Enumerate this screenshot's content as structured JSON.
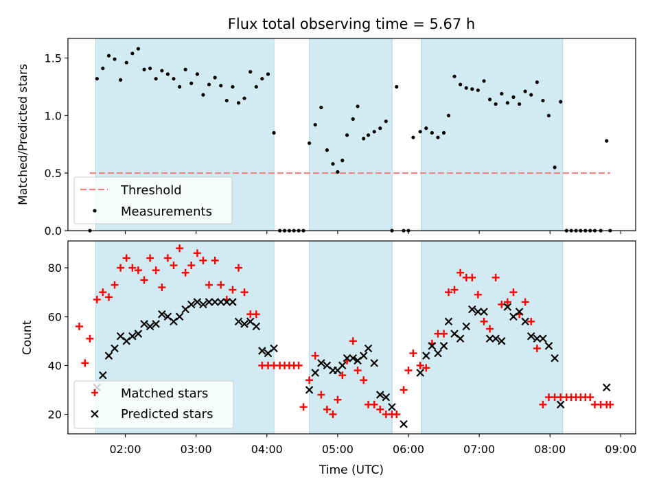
{
  "figure": {
    "title": "Flux total observing time = 5.67 h",
    "xlabel": "Time (UTC)"
  },
  "colors": {
    "band": "#add8e6",
    "threshold": "#f08080",
    "measurement": "#000000",
    "matched": "#ff0000",
    "predicted": "#000000"
  },
  "chart_data": [
    {
      "type": "scatter",
      "ylabel": "Matched/Predicted stars",
      "xlim": [
        1.19,
        9.21
      ],
      "ylim": [
        0.0,
        1.67
      ],
      "yticks": [
        0.0,
        0.5,
        1.0,
        1.5
      ],
      "ytick_labels": [
        "0.0",
        "0.5",
        "1.0",
        "1.5"
      ],
      "shaded_intervals": [
        [
          1.583,
          4.1
        ],
        [
          4.6,
          5.77
        ],
        [
          6.18,
          8.18
        ]
      ],
      "threshold": {
        "name": "Threshold",
        "y": 0.5,
        "x_start": 1.5,
        "x_end": 8.85
      },
      "series": [
        {
          "name": "Measurements",
          "x": [
            1.5,
            1.6,
            1.683,
            1.767,
            1.85,
            1.933,
            2.017,
            2.1,
            2.183,
            2.267,
            2.35,
            2.433,
            2.517,
            2.6,
            2.683,
            2.767,
            2.85,
            2.933,
            3.017,
            3.1,
            3.183,
            3.267,
            3.35,
            3.433,
            3.517,
            3.6,
            3.683,
            3.767,
            3.85,
            3.933,
            4.017,
            4.1,
            4.183,
            4.25,
            4.317,
            4.383,
            4.45,
            4.517,
            4.6,
            4.683,
            4.767,
            4.85,
            4.933,
            5.0,
            5.067,
            5.133,
            5.217,
            5.283,
            5.367,
            5.433,
            5.517,
            5.6,
            5.683,
            5.767,
            5.833,
            5.933,
            6.0,
            6.067,
            6.167,
            6.25,
            6.333,
            6.417,
            6.5,
            6.567,
            6.65,
            6.733,
            6.817,
            6.9,
            6.983,
            7.067,
            7.15,
            7.233,
            7.317,
            7.4,
            7.483,
            7.567,
            7.65,
            7.733,
            7.817,
            7.9,
            7.983,
            8.067,
            8.15,
            8.233,
            8.3,
            8.367,
            8.433,
            8.5,
            8.567,
            8.633,
            8.717,
            8.8,
            8.85
          ],
          "y": [
            0.0,
            1.32,
            1.41,
            1.52,
            1.49,
            1.31,
            1.46,
            1.54,
            1.58,
            1.4,
            1.41,
            1.32,
            1.39,
            1.36,
            1.32,
            1.25,
            1.4,
            1.28,
            1.36,
            1.18,
            1.27,
            1.33,
            1.26,
            1.13,
            1.25,
            1.11,
            1.15,
            1.38,
            1.25,
            1.32,
            1.36,
            0.85,
            0.0,
            0.0,
            0.0,
            0.0,
            0.0,
            0.0,
            0.76,
            0.92,
            1.07,
            0.7,
            0.58,
            0.51,
            0.61,
            0.83,
            0.97,
            1.08,
            0.8,
            0.83,
            0.86,
            0.89,
            0.95,
            0.0,
            1.25,
            0.0,
            0.0,
            0.81,
            0.86,
            0.89,
            0.85,
            0.81,
            0.85,
            1.0,
            1.34,
            1.27,
            1.24,
            1.23,
            1.22,
            1.3,
            1.14,
            1.1,
            1.19,
            1.11,
            1.16,
            1.1,
            1.21,
            1.18,
            1.29,
            1.13,
            1.0,
            0.55,
            1.12,
            0.0,
            0.0,
            0.0,
            0.0,
            0.0,
            0.0,
            0.0,
            0.0,
            0.78,
            0.0
          ]
        }
      ],
      "legend": {
        "placement": "lower-left",
        "entries": [
          {
            "label": "Threshold",
            "marker": "dashed-line"
          },
          {
            "label": "Measurements",
            "marker": "dot"
          }
        ]
      }
    },
    {
      "type": "scatter",
      "ylabel": "Count",
      "xlim": [
        1.19,
        9.21
      ],
      "ylim": [
        12,
        91
      ],
      "yticks": [
        20,
        40,
        60,
        80
      ],
      "ytick_labels": [
        "20",
        "40",
        "60",
        "80"
      ],
      "xticks": [
        2,
        3,
        4,
        5,
        6,
        7,
        8,
        9
      ],
      "xtick_labels": [
        "02:00",
        "03:00",
        "04:00",
        "05:00",
        "06:00",
        "07:00",
        "08:00",
        "09:00"
      ],
      "shaded_intervals": [
        [
          1.583,
          4.1
        ],
        [
          4.6,
          5.77
        ],
        [
          6.18,
          8.18
        ]
      ],
      "series": [
        {
          "name": "Matched stars",
          "x": [
            1.35,
            1.43,
            1.5,
            1.6,
            1.683,
            1.767,
            1.85,
            1.933,
            2.017,
            2.1,
            2.183,
            2.267,
            2.35,
            2.433,
            2.517,
            2.6,
            2.683,
            2.767,
            2.85,
            2.933,
            3.017,
            3.1,
            3.183,
            3.267,
            3.35,
            3.433,
            3.517,
            3.6,
            3.683,
            3.767,
            3.85,
            3.933,
            4.017,
            4.1,
            4.183,
            4.25,
            4.317,
            4.383,
            4.45,
            4.517,
            4.6,
            4.683,
            4.767,
            4.85,
            4.933,
            5.0,
            5.067,
            5.133,
            5.217,
            5.283,
            5.367,
            5.433,
            5.517,
            5.6,
            5.683,
            5.767,
            5.833,
            5.933,
            6.0,
            6.067,
            6.167,
            6.25,
            6.333,
            6.417,
            6.5,
            6.567,
            6.65,
            6.733,
            6.817,
            6.9,
            6.983,
            7.067,
            7.15,
            7.233,
            7.317,
            7.4,
            7.483,
            7.567,
            7.65,
            7.733,
            7.817,
            7.9,
            7.983,
            8.067,
            8.15,
            8.233,
            8.3,
            8.367,
            8.433,
            8.5,
            8.567,
            8.633,
            8.717,
            8.8,
            8.85
          ],
          "y": [
            56,
            41,
            51,
            67,
            70,
            68,
            73,
            80,
            84,
            80,
            79,
            75,
            84,
            79,
            72,
            84,
            81,
            88,
            78,
            81,
            86,
            83,
            73,
            83,
            73,
            67,
            71,
            80,
            70,
            61,
            61,
            40,
            40,
            40,
            40,
            40,
            40,
            40,
            40,
            23,
            34,
            44,
            28,
            22,
            20,
            26,
            36,
            42,
            50,
            38,
            34,
            24,
            24,
            22,
            20,
            20,
            20,
            30,
            38,
            45,
            40,
            39,
            49,
            53,
            53,
            70,
            71,
            78,
            76,
            76,
            69,
            58,
            55,
            76,
            65,
            66,
            70,
            61,
            66,
            58,
            47,
            24,
            27,
            27,
            27,
            27,
            27,
            27,
            27,
            27,
            27,
            24,
            24,
            24,
            24
          ],
          "marker": "plus"
        },
        {
          "name": "Predicted stars",
          "x": [
            1.6,
            1.683,
            1.767,
            1.85,
            1.933,
            2.017,
            2.1,
            2.183,
            2.267,
            2.35,
            2.433,
            2.517,
            2.6,
            2.683,
            2.767,
            2.85,
            2.933,
            3.017,
            3.1,
            3.183,
            3.267,
            3.35,
            3.433,
            3.517,
            3.6,
            3.683,
            3.767,
            3.85,
            3.933,
            4.017,
            4.1,
            4.6,
            4.683,
            4.767,
            4.85,
            4.933,
            5.0,
            5.067,
            5.133,
            5.217,
            5.283,
            5.367,
            5.433,
            5.517,
            5.6,
            5.683,
            5.767,
            5.933,
            6.167,
            6.25,
            6.333,
            6.417,
            6.5,
            6.567,
            6.65,
            6.733,
            6.817,
            6.9,
            6.983,
            7.067,
            7.15,
            7.233,
            7.317,
            7.4,
            7.483,
            7.567,
            7.65,
            7.733,
            7.817,
            7.9,
            7.983,
            8.067,
            8.15,
            8.8
          ],
          "y": [
            31,
            36,
            44,
            47,
            52,
            50,
            52,
            53,
            57,
            56,
            57,
            61,
            60,
            58,
            60,
            63,
            65,
            66,
            65,
            66,
            66,
            66,
            66,
            66,
            58,
            57,
            58,
            56,
            46,
            45,
            47,
            30,
            37,
            41,
            40,
            38,
            38,
            40,
            43,
            43,
            42,
            44,
            47,
            41,
            28,
            27,
            23,
            16,
            37,
            44,
            48,
            45,
            48,
            58,
            53,
            51,
            56,
            63,
            62,
            62,
            51,
            51,
            50,
            64,
            60,
            62,
            58,
            52,
            51,
            51,
            48,
            43,
            24,
            31
          ],
          "marker": "x"
        }
      ],
      "legend": {
        "placement": "lower-left",
        "entries": [
          {
            "label": "Matched stars",
            "marker": "plus"
          },
          {
            "label": "Predicted stars",
            "marker": "x"
          }
        ]
      }
    }
  ]
}
